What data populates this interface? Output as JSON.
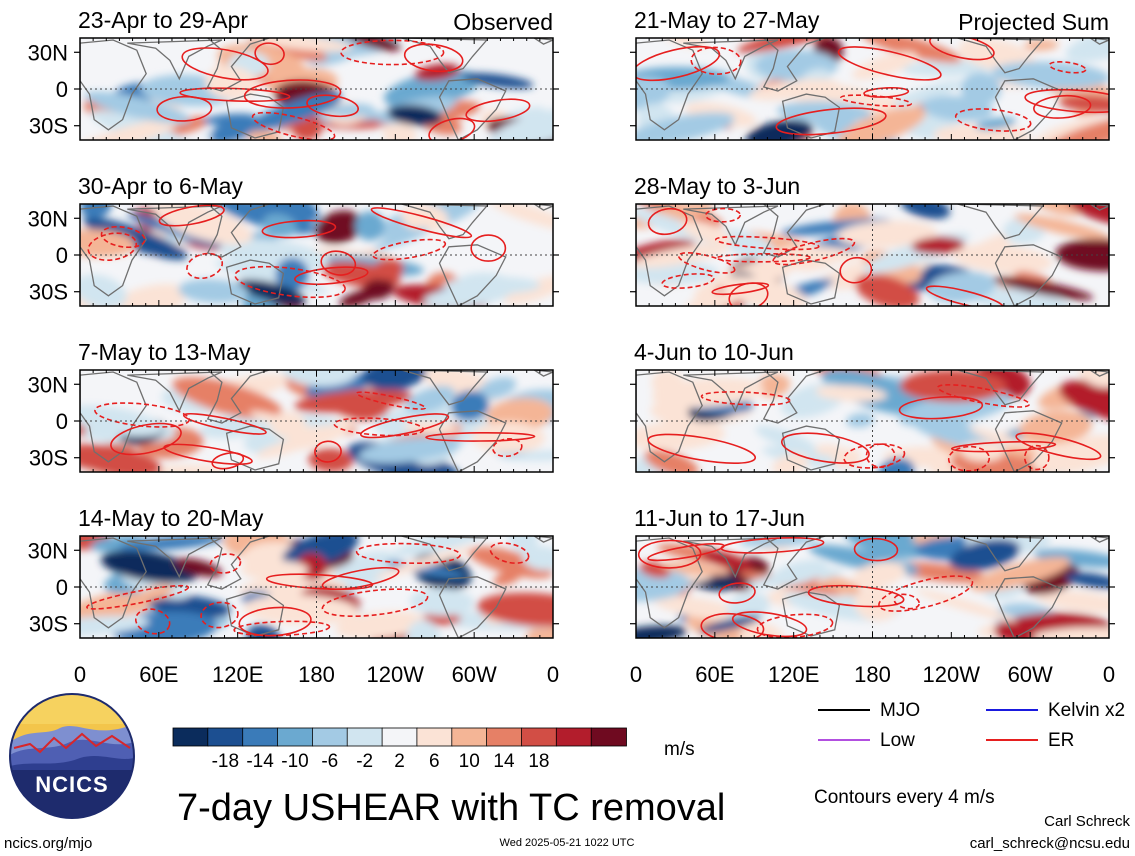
{
  "colors": {
    "positive": [
      "#fbe3d6",
      "#f4b596",
      "#e68066",
      "#d24e45",
      "#b31d2c",
      "#6f0a20"
    ],
    "negative": [
      "#f4f5f8",
      "#d1e5f0",
      "#a3cae4",
      "#6ba9d0",
      "#3a7bb9",
      "#1c4f91",
      "#0b2c5c"
    ],
    "coast": "#6f6f6f",
    "contour": "#e61f1f",
    "mjo": "#000000",
    "kelvin": "#1a1adf",
    "low": "#b24fe0",
    "er": "#e61f1f"
  },
  "chart_data": {
    "type": "heatmap",
    "title": "7-day USHEAR with TC removal",
    "units": "m/s",
    "contour_note": "Contours every 4 m/s",
    "lat_ticks": [
      "30N",
      "0",
      "30S"
    ],
    "lon_ticks": [
      "0",
      "60E",
      "120E",
      "180",
      "120W",
      "60W",
      "0"
    ],
    "colorbar": {
      "labels": [
        "-18",
        "-14",
        "-10",
        "-6",
        "-2",
        "2",
        "6",
        "10",
        "14",
        "18"
      ],
      "levels": [
        -18,
        -14,
        -10,
        -6,
        -2,
        2,
        6,
        10,
        14,
        18
      ]
    },
    "columns": [
      {
        "label": "Observed",
        "panels": [
          "23-Apr to 29-Apr",
          "30-Apr to 6-May",
          "7-May to 13-May",
          "14-May to 20-May"
        ]
      },
      {
        "label": "Projected Sum",
        "panels": [
          "21-May to 27-May",
          "28-May to 3-Jun",
          "4-Jun to 10-Jun",
          "11-Jun to 17-Jun"
        ]
      }
    ],
    "legend": [
      {
        "name": "MJO",
        "color": "#000000"
      },
      {
        "name": "Kelvin x2",
        "color": "#1a1adf"
      },
      {
        "name": "Low",
        "color": "#b24fe0"
      },
      {
        "name": "ER",
        "color": "#e61f1f"
      }
    ]
  },
  "footer": {
    "logo_text": "NCICS",
    "site": "ncics.org/mjo",
    "timestamp": "Wed 2025-05-21 1022 UTC",
    "author": "Carl Schreck",
    "email": "carl_schreck@ncsu.edu"
  }
}
